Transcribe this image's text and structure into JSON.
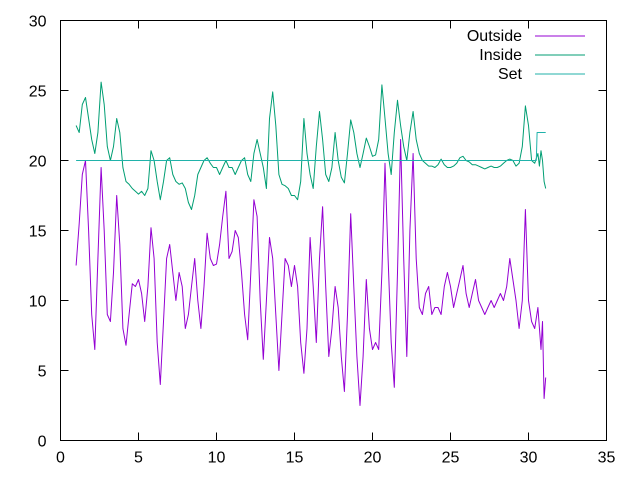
{
  "chart_data": {
    "type": "line",
    "title": "",
    "xlabel": "",
    "ylabel": "",
    "xlim": [
      0,
      35
    ],
    "ylim": [
      0,
      30
    ],
    "x_ticks": [
      0,
      5,
      10,
      15,
      20,
      25,
      30,
      35
    ],
    "y_ticks": [
      0,
      5,
      10,
      15,
      20,
      25,
      30
    ],
    "grid": false,
    "legend_position": "top-right",
    "series": [
      {
        "name": "Outside",
        "color": "#9400d3",
        "points": [
          [
            1.0,
            12.5
          ],
          [
            1.2,
            15.5
          ],
          [
            1.4,
            19.0
          ],
          [
            1.6,
            20.0
          ],
          [
            1.8,
            15.0
          ],
          [
            2.0,
            9.0
          ],
          [
            2.2,
            6.5
          ],
          [
            2.4,
            13.0
          ],
          [
            2.6,
            19.5
          ],
          [
            2.8,
            15.0
          ],
          [
            3.0,
            9.0
          ],
          [
            3.2,
            8.5
          ],
          [
            3.4,
            12.0
          ],
          [
            3.6,
            17.5
          ],
          [
            3.8,
            14.0
          ],
          [
            4.0,
            8.0
          ],
          [
            4.2,
            6.8
          ],
          [
            4.4,
            9.0
          ],
          [
            4.6,
            11.2
          ],
          [
            4.8,
            11.0
          ],
          [
            5.0,
            11.5
          ],
          [
            5.2,
            10.5
          ],
          [
            5.4,
            8.5
          ],
          [
            5.6,
            11.0
          ],
          [
            5.8,
            15.2
          ],
          [
            6.0,
            13.0
          ],
          [
            6.2,
            7.0
          ],
          [
            6.4,
            4.0
          ],
          [
            6.6,
            8.5
          ],
          [
            6.8,
            13.0
          ],
          [
            7.0,
            14.0
          ],
          [
            7.2,
            12.0
          ],
          [
            7.4,
            10.0
          ],
          [
            7.6,
            12.0
          ],
          [
            7.8,
            11.0
          ],
          [
            8.0,
            8.0
          ],
          [
            8.2,
            9.0
          ],
          [
            8.4,
            11.0
          ],
          [
            8.6,
            13.0
          ],
          [
            8.8,
            10.0
          ],
          [
            9.0,
            8.0
          ],
          [
            9.2,
            11.0
          ],
          [
            9.4,
            14.8
          ],
          [
            9.6,
            13.0
          ],
          [
            9.8,
            12.5
          ],
          [
            10.0,
            12.6
          ],
          [
            10.2,
            14.0
          ],
          [
            10.4,
            16.0
          ],
          [
            10.6,
            17.8
          ],
          [
            10.8,
            13.0
          ],
          [
            11.0,
            13.5
          ],
          [
            11.2,
            15.0
          ],
          [
            11.4,
            14.5
          ],
          [
            11.6,
            12.0
          ],
          [
            11.8,
            9.0
          ],
          [
            12.0,
            7.2
          ],
          [
            12.2,
            12.0
          ],
          [
            12.4,
            17.2
          ],
          [
            12.6,
            16.0
          ],
          [
            12.8,
            10.0
          ],
          [
            13.0,
            5.8
          ],
          [
            13.2,
            10.0
          ],
          [
            13.4,
            14.5
          ],
          [
            13.6,
            13.0
          ],
          [
            13.8,
            9.0
          ],
          [
            14.0,
            5.0
          ],
          [
            14.2,
            9.0
          ],
          [
            14.4,
            13.0
          ],
          [
            14.6,
            12.5
          ],
          [
            14.8,
            11.0
          ],
          [
            15.0,
            12.5
          ],
          [
            15.2,
            11.0
          ],
          [
            15.4,
            7.0
          ],
          [
            15.6,
            4.8
          ],
          [
            15.8,
            8.0
          ],
          [
            16.0,
            14.5
          ],
          [
            16.2,
            11.0
          ],
          [
            16.4,
            7.0
          ],
          [
            16.6,
            13.0
          ],
          [
            16.8,
            16.7
          ],
          [
            17.0,
            11.0
          ],
          [
            17.2,
            6.0
          ],
          [
            17.4,
            8.0
          ],
          [
            17.6,
            11.0
          ],
          [
            17.8,
            9.5
          ],
          [
            18.0,
            6.0
          ],
          [
            18.2,
            3.5
          ],
          [
            18.4,
            9.0
          ],
          [
            18.6,
            16.2
          ],
          [
            18.8,
            11.0
          ],
          [
            19.0,
            6.0
          ],
          [
            19.2,
            2.5
          ],
          [
            19.4,
            6.0
          ],
          [
            19.6,
            11.5
          ],
          [
            19.8,
            8.0
          ],
          [
            20.0,
            6.5
          ],
          [
            20.2,
            7.0
          ],
          [
            20.4,
            6.5
          ],
          [
            20.6,
            12.0
          ],
          [
            20.8,
            19.8
          ],
          [
            21.0,
            13.0
          ],
          [
            21.2,
            7.0
          ],
          [
            21.4,
            3.8
          ],
          [
            21.6,
            12.0
          ],
          [
            21.8,
            21.5
          ],
          [
            22.0,
            13.0
          ],
          [
            22.2,
            6.0
          ],
          [
            22.4,
            15.0
          ],
          [
            22.6,
            20.5
          ],
          [
            22.8,
            13.0
          ],
          [
            23.0,
            9.5
          ],
          [
            23.2,
            9.0
          ],
          [
            23.4,
            10.5
          ],
          [
            23.6,
            11.0
          ],
          [
            23.8,
            9.0
          ],
          [
            24.0,
            9.5
          ],
          [
            24.2,
            9.5
          ],
          [
            24.4,
            9.0
          ],
          [
            24.6,
            11.0
          ],
          [
            24.8,
            12.0
          ],
          [
            25.0,
            11.0
          ],
          [
            25.2,
            9.5
          ],
          [
            25.4,
            10.5
          ],
          [
            25.6,
            11.5
          ],
          [
            25.8,
            12.5
          ],
          [
            26.0,
            10.5
          ],
          [
            26.2,
            9.5
          ],
          [
            26.4,
            10.5
          ],
          [
            26.6,
            11.5
          ],
          [
            26.8,
            10.0
          ],
          [
            27.0,
            9.5
          ],
          [
            27.2,
            9.0
          ],
          [
            27.4,
            9.5
          ],
          [
            27.6,
            10.0
          ],
          [
            27.8,
            9.5
          ],
          [
            28.0,
            10.0
          ],
          [
            28.2,
            10.5
          ],
          [
            28.4,
            10.0
          ],
          [
            28.6,
            11.0
          ],
          [
            28.8,
            13.0
          ],
          [
            29.0,
            11.5
          ],
          [
            29.2,
            10.0
          ],
          [
            29.4,
            8.0
          ],
          [
            29.6,
            10.0
          ],
          [
            29.8,
            16.5
          ],
          [
            30.0,
            10.0
          ],
          [
            30.2,
            8.5
          ],
          [
            30.4,
            8.0
          ],
          [
            30.6,
            9.5
          ],
          [
            30.8,
            6.5
          ],
          [
            30.9,
            8.5
          ],
          [
            31.0,
            3.0
          ],
          [
            31.1,
            4.5
          ]
        ]
      },
      {
        "name": "Inside",
        "color": "#009e73",
        "points": [
          [
            1.0,
            22.5
          ],
          [
            1.2,
            22.0
          ],
          [
            1.4,
            24.0
          ],
          [
            1.6,
            24.5
          ],
          [
            1.8,
            23.0
          ],
          [
            2.0,
            21.5
          ],
          [
            2.2,
            20.5
          ],
          [
            2.4,
            22.0
          ],
          [
            2.6,
            25.6
          ],
          [
            2.8,
            24.0
          ],
          [
            3.0,
            21.0
          ],
          [
            3.2,
            20.0
          ],
          [
            3.4,
            21.0
          ],
          [
            3.6,
            23.0
          ],
          [
            3.8,
            22.0
          ],
          [
            4.0,
            19.5
          ],
          [
            4.2,
            18.5
          ],
          [
            4.4,
            18.3
          ],
          [
            4.6,
            18.0
          ],
          [
            4.8,
            17.8
          ],
          [
            5.0,
            17.6
          ],
          [
            5.2,
            17.8
          ],
          [
            5.4,
            17.5
          ],
          [
            5.6,
            18.0
          ],
          [
            5.8,
            20.7
          ],
          [
            6.0,
            20.0
          ],
          [
            6.2,
            18.5
          ],
          [
            6.4,
            17.2
          ],
          [
            6.6,
            18.5
          ],
          [
            6.8,
            20.0
          ],
          [
            7.0,
            20.2
          ],
          [
            7.2,
            19.0
          ],
          [
            7.4,
            18.5
          ],
          [
            7.6,
            18.3
          ],
          [
            7.8,
            18.4
          ],
          [
            8.0,
            18.0
          ],
          [
            8.2,
            17.0
          ],
          [
            8.4,
            16.5
          ],
          [
            8.6,
            17.5
          ],
          [
            8.8,
            19.0
          ],
          [
            9.0,
            19.5
          ],
          [
            9.2,
            20.0
          ],
          [
            9.4,
            20.2
          ],
          [
            9.6,
            19.8
          ],
          [
            9.8,
            19.5
          ],
          [
            10.0,
            19.5
          ],
          [
            10.2,
            19.0
          ],
          [
            10.4,
            19.5
          ],
          [
            10.6,
            20.0
          ],
          [
            10.8,
            19.5
          ],
          [
            11.0,
            19.5
          ],
          [
            11.2,
            19.0
          ],
          [
            11.4,
            19.5
          ],
          [
            11.6,
            20.0
          ],
          [
            11.8,
            20.2
          ],
          [
            12.0,
            19.0
          ],
          [
            12.2,
            18.5
          ],
          [
            12.4,
            20.5
          ],
          [
            12.6,
            21.5
          ],
          [
            12.8,
            20.5
          ],
          [
            13.0,
            19.5
          ],
          [
            13.2,
            18.0
          ],
          [
            13.4,
            23.0
          ],
          [
            13.6,
            24.9
          ],
          [
            13.8,
            22.5
          ],
          [
            14.0,
            19.0
          ],
          [
            14.2,
            18.3
          ],
          [
            14.4,
            18.2
          ],
          [
            14.6,
            18.0
          ],
          [
            14.8,
            17.5
          ],
          [
            15.0,
            17.5
          ],
          [
            15.2,
            17.2
          ],
          [
            15.4,
            18.5
          ],
          [
            15.6,
            23.0
          ],
          [
            15.8,
            20.5
          ],
          [
            16.0,
            19.0
          ],
          [
            16.2,
            18.0
          ],
          [
            16.4,
            21.0
          ],
          [
            16.6,
            23.5
          ],
          [
            16.8,
            21.5
          ],
          [
            17.0,
            19.0
          ],
          [
            17.2,
            18.5
          ],
          [
            17.4,
            19.5
          ],
          [
            17.6,
            22.0
          ],
          [
            17.8,
            20.0
          ],
          [
            18.0,
            18.8
          ],
          [
            18.2,
            18.4
          ],
          [
            18.4,
            20.5
          ],
          [
            18.6,
            22.9
          ],
          [
            18.8,
            22.0
          ],
          [
            19.0,
            20.5
          ],
          [
            19.2,
            19.5
          ],
          [
            19.4,
            20.5
          ],
          [
            19.6,
            21.6
          ],
          [
            19.8,
            21.0
          ],
          [
            20.0,
            20.3
          ],
          [
            20.2,
            20.4
          ],
          [
            20.4,
            21.5
          ],
          [
            20.6,
            25.4
          ],
          [
            20.8,
            23.0
          ],
          [
            21.0,
            20.5
          ],
          [
            21.2,
            19.0
          ],
          [
            21.4,
            22.0
          ],
          [
            21.6,
            24.3
          ],
          [
            21.8,
            22.5
          ],
          [
            22.0,
            21.0
          ],
          [
            22.2,
            20.0
          ],
          [
            22.4,
            22.0
          ],
          [
            22.6,
            23.5
          ],
          [
            22.8,
            21.5
          ],
          [
            23.0,
            20.5
          ],
          [
            23.2,
            20.0
          ],
          [
            23.4,
            19.8
          ],
          [
            23.6,
            19.6
          ],
          [
            23.8,
            19.6
          ],
          [
            24.0,
            19.5
          ],
          [
            24.2,
            19.7
          ],
          [
            24.4,
            20.1
          ],
          [
            24.6,
            19.7
          ],
          [
            24.8,
            19.5
          ],
          [
            25.0,
            19.5
          ],
          [
            25.2,
            19.6
          ],
          [
            25.4,
            19.8
          ],
          [
            25.6,
            20.2
          ],
          [
            25.8,
            20.3
          ],
          [
            26.0,
            20.0
          ],
          [
            26.2,
            19.9
          ],
          [
            26.4,
            19.7
          ],
          [
            26.6,
            19.7
          ],
          [
            26.8,
            19.6
          ],
          [
            27.0,
            19.5
          ],
          [
            27.2,
            19.4
          ],
          [
            27.4,
            19.5
          ],
          [
            27.6,
            19.6
          ],
          [
            27.8,
            19.5
          ],
          [
            28.0,
            19.5
          ],
          [
            28.2,
            19.6
          ],
          [
            28.4,
            19.8
          ],
          [
            28.6,
            20.0
          ],
          [
            28.8,
            20.1
          ],
          [
            29.0,
            20.0
          ],
          [
            29.2,
            19.6
          ],
          [
            29.4,
            19.8
          ],
          [
            29.6,
            21.0
          ],
          [
            29.8,
            23.9
          ],
          [
            30.0,
            22.5
          ],
          [
            30.2,
            20.0
          ],
          [
            30.4,
            19.8
          ],
          [
            30.6,
            20.5
          ],
          [
            30.7,
            19.6
          ],
          [
            30.8,
            20.7
          ],
          [
            30.9,
            20.0
          ],
          [
            31.0,
            18.5
          ],
          [
            31.1,
            18.0
          ]
        ]
      },
      {
        "name": "Set",
        "color": "#20b2aa",
        "points": [
          [
            1.0,
            20.0
          ],
          [
            30.5,
            20.0
          ],
          [
            30.55,
            22.0
          ],
          [
            31.1,
            22.0
          ]
        ]
      }
    ]
  }
}
